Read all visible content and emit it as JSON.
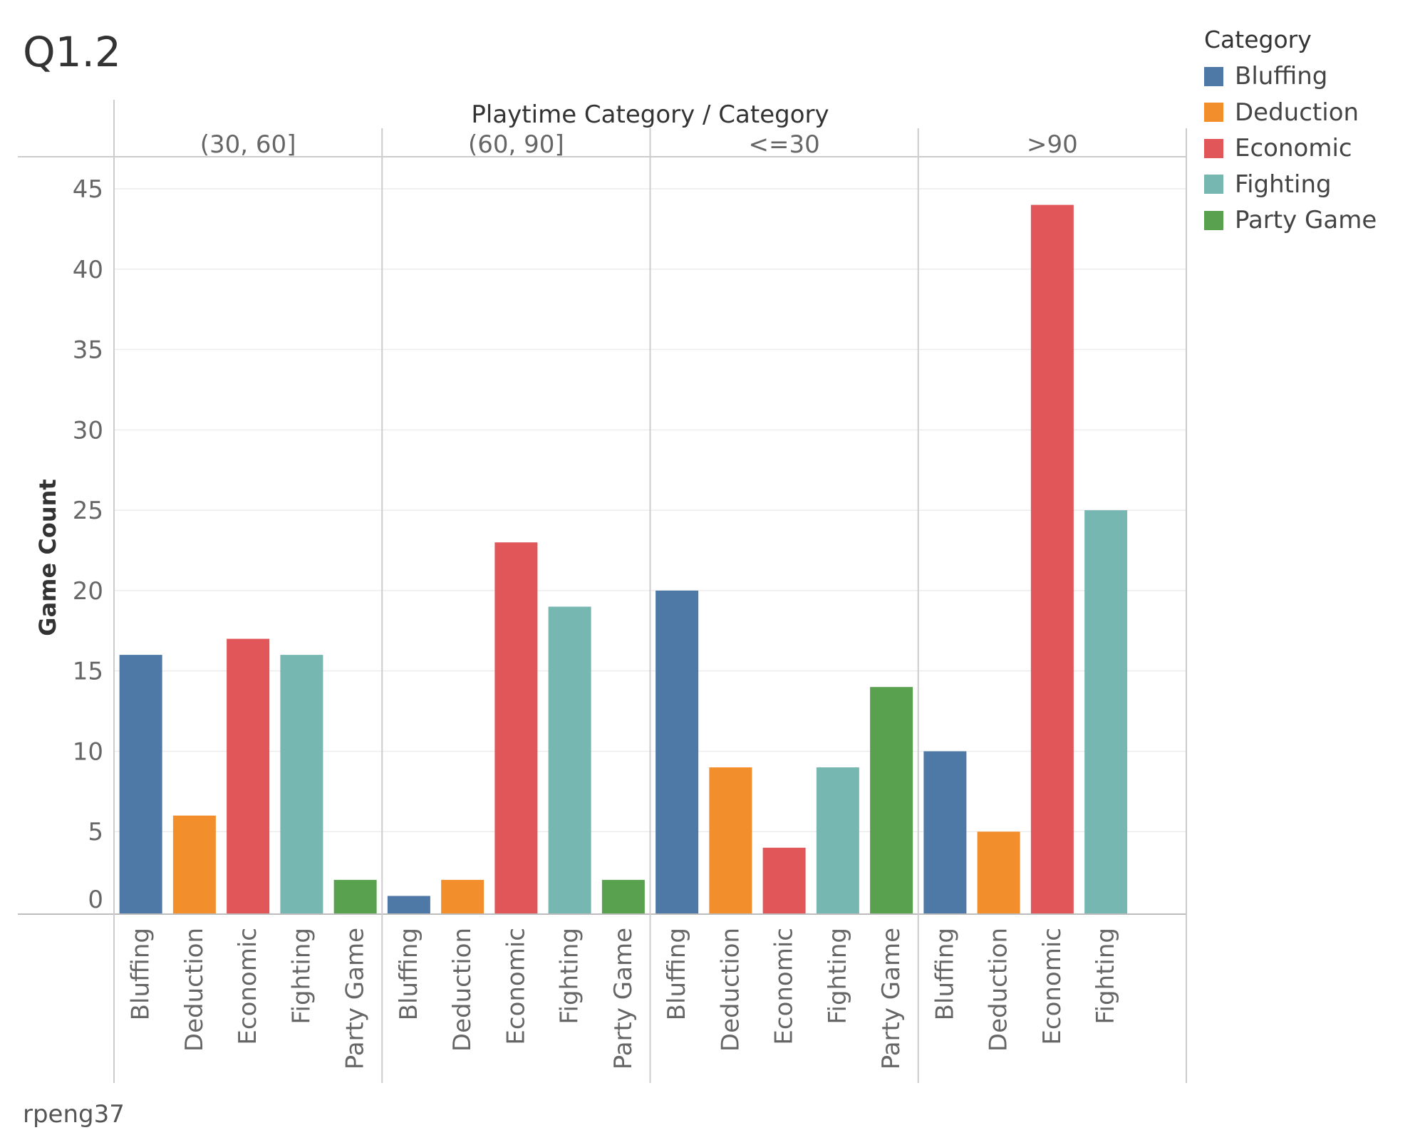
{
  "title": "Q1.2",
  "footer": "rpeng37",
  "colors": {
    "Bluffing": "#4e79a7",
    "Deduction": "#f28e2b",
    "Economic": "#e15759",
    "Fighting": "#76b7b2",
    "Party Game": "#59a14f"
  },
  "legend": {
    "title": "Category",
    "items": [
      "Bluffing",
      "Deduction",
      "Economic",
      "Fighting",
      "Party Game"
    ]
  },
  "chart_data": {
    "type": "bar",
    "header_title": "Playtime Category  /  Category",
    "ylabel": "Game Count",
    "ylim": [
      0,
      45
    ],
    "yticks": [
      0,
      5,
      10,
      15,
      20,
      25,
      30,
      35,
      40,
      45
    ],
    "grid": true,
    "legend_position": "top-right",
    "panes": [
      {
        "label": "(30, 60]",
        "bars": [
          {
            "category": "Bluffing",
            "value": 16
          },
          {
            "category": "Deduction",
            "value": 6
          },
          {
            "category": "Economic",
            "value": 17
          },
          {
            "category": "Fighting",
            "value": 16
          },
          {
            "category": "Party Game",
            "value": 2
          }
        ]
      },
      {
        "label": "(60, 90]",
        "bars": [
          {
            "category": "Bluffing",
            "value": 1
          },
          {
            "category": "Deduction",
            "value": 2
          },
          {
            "category": "Economic",
            "value": 23
          },
          {
            "category": "Fighting",
            "value": 19
          },
          {
            "category": "Party Game",
            "value": 2
          }
        ]
      },
      {
        "label": "<=30",
        "bars": [
          {
            "category": "Bluffing",
            "value": 20
          },
          {
            "category": "Deduction",
            "value": 9
          },
          {
            "category": "Economic",
            "value": 4
          },
          {
            "category": "Fighting",
            "value": 9
          },
          {
            "category": "Party Game",
            "value": 14
          }
        ]
      },
      {
        "label": ">90",
        "bars": [
          {
            "category": "Bluffing",
            "value": 10
          },
          {
            "category": "Deduction",
            "value": 5
          },
          {
            "category": "Economic",
            "value": 44
          },
          {
            "category": "Fighting",
            "value": 25
          }
        ]
      }
    ]
  }
}
